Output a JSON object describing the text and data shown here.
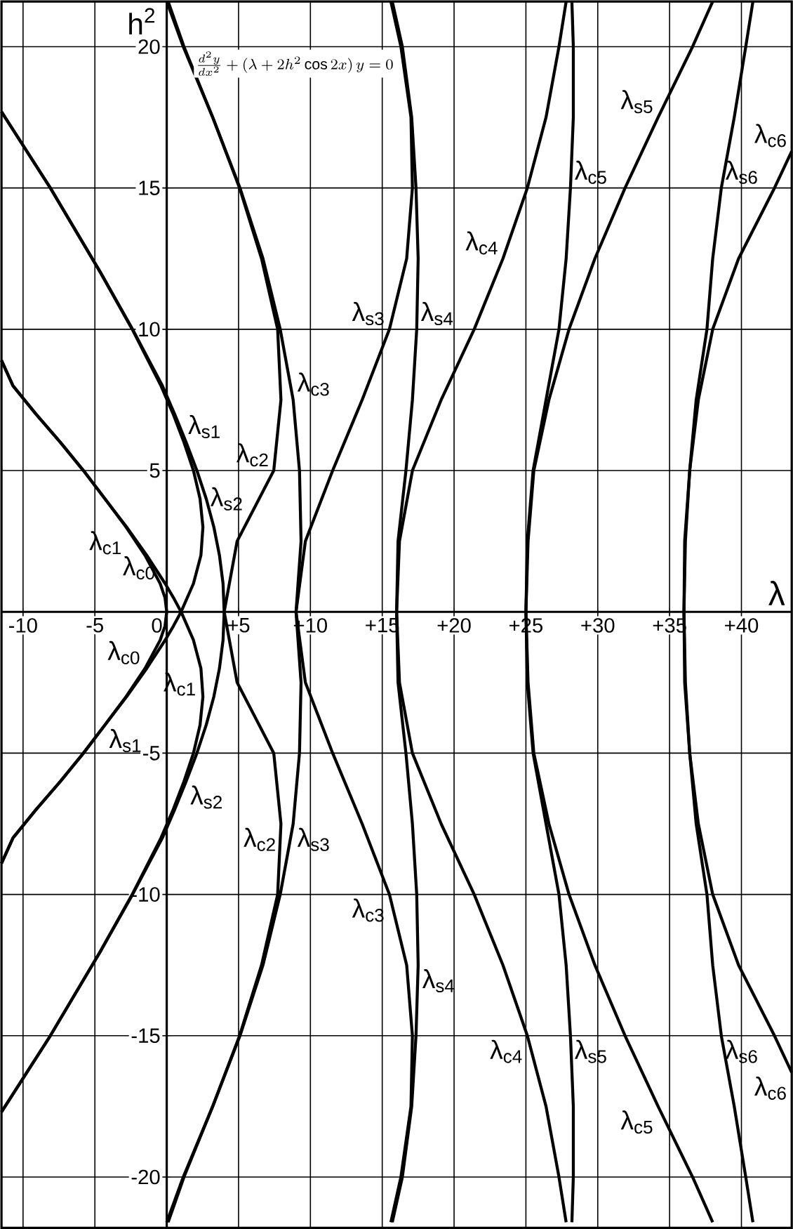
{
  "chart_data": {
    "type": "line",
    "xlabel": "λ",
    "ylabel": "h$^{2}$",
    "annotations": [
      "\\frac{d^{2}y}{dx^{2}}+(\\lambda+2h^{2}\\cos 2x)\\,y=0"
    ],
    "xlim": [
      -11.5,
      43.5
    ],
    "ylim": [
      -21.8,
      21.6
    ],
    "xticks": [
      -10,
      -5,
      0,
      {
        "value": 5,
        "label": "+5"
      },
      {
        "value": 10,
        "label": "+10"
      },
      {
        "value": 15,
        "label": "+15"
      },
      {
        "value": 20,
        "label": "+20"
      },
      {
        "value": 25,
        "label": "+25"
      },
      {
        "value": 30,
        "label": "+30"
      },
      {
        "value": 35,
        "label": "+35"
      },
      {
        "value": 40,
        "label": "+40"
      }
    ],
    "yticks": [
      -20,
      -15,
      -10,
      -5,
      5,
      10,
      15,
      20
    ],
    "grid": true,
    "marker": "none",
    "line_style": "solid",
    "series": [
      {
        "name": "λ$_{c0}$",
        "color": "#000000",
        "x": [
          -11.5,
          -10.7,
          -9.1,
          -7.4,
          -5.8,
          -4.3,
          -2.83,
          -1.51,
          -0.455,
          -0.12,
          0,
          -0.12,
          -0.455,
          -1.51,
          -2.83,
          -4.3,
          -5.8,
          -7.4,
          -9.1,
          -10.7,
          -11.5
        ],
        "values": [
          -8.9,
          -8,
          -7,
          -6,
          -5,
          -4,
          -3,
          -2,
          -1,
          -0.5,
          0,
          0.5,
          1,
          2,
          3,
          4,
          5,
          6,
          7,
          8,
          8.9
        ]
      },
      {
        "name": "λ$_{c1}$",
        "color": "#000000",
        "x": [
          -11.5,
          -8.1,
          -4.6,
          -2.4,
          -0.4,
          0.45,
          1.2,
          1.86,
          2.32,
          2.52,
          2.38,
          1.86,
          1,
          0.47,
          -0.11,
          -1.39,
          -2.79,
          -4.3,
          -5.79,
          -7.4,
          -9.1,
          -10.7,
          -11.5
        ],
        "values": [
          -17.7,
          -15,
          -12,
          -10,
          -8,
          -7,
          -6,
          -5,
          -4,
          -3,
          -2,
          -1,
          0,
          0.5,
          1,
          2,
          3,
          4,
          5,
          6,
          7,
          8,
          8.9
        ]
      },
      {
        "name": "λ$_{s1}$",
        "color": "#000000",
        "x": [
          -11.5,
          -10.7,
          -9.1,
          -7.4,
          -5.79,
          -4.3,
          -2.79,
          -1.39,
          -0.11,
          0.47,
          1,
          1.86,
          2.38,
          2.52,
          2.32,
          1.86,
          1.2,
          0.45,
          -0.4,
          -2.4,
          -4.6,
          -8.1,
          -11.5
        ],
        "values": [
          -8.9,
          -8,
          -7,
          -6,
          -5,
          -4,
          -3,
          -2,
          -1,
          -0.5,
          0,
          1,
          2,
          3,
          4,
          5,
          6,
          7,
          8,
          10,
          12,
          15,
          17.7
        ]
      },
      {
        "name": "λ$_{s2}$",
        "color": "#000000",
        "x": [
          -11.5,
          -8.1,
          -4.6,
          -2.38,
          -0.3,
          0.55,
          1.35,
          2.1,
          2.75,
          3.28,
          3.67,
          3.92,
          4,
          3.92,
          3.67,
          3.28,
          2.75,
          2.1,
          1.35,
          0.55,
          -0.3,
          -2.38,
          -4.6,
          -8.1,
          -11.5
        ],
        "values": [
          -17.7,
          -15,
          -12,
          -10,
          -8,
          -7,
          -6,
          -5,
          -4,
          -3,
          -2,
          -1,
          0,
          1,
          2,
          3,
          4,
          5,
          6,
          7,
          8,
          10,
          12,
          15,
          17.7
        ]
      },
      {
        "name": "λ$_{c2}$",
        "color": "#000000",
        "x": [
          0,
          1.15,
          3.2,
          5.07,
          6.6,
          7.72,
          7.95,
          7.45,
          4.9,
          4,
          4.9,
          7.45,
          7.95,
          7.72,
          6.6,
          5.07,
          3.2,
          1.15,
          0
        ],
        "values": [
          -21.6,
          -20,
          -17.5,
          -15,
          -12.5,
          -10,
          -7.5,
          -5,
          -2.5,
          0,
          2.5,
          5,
          7.5,
          10,
          12.5,
          15,
          17.5,
          20,
          21.6
        ]
      },
      {
        "name": "λ$_{s3}$",
        "color": "#000000",
        "x": [
          0.1,
          1.2,
          3.2,
          5.1,
          6.7,
          7.9,
          8.8,
          9.24,
          9.35,
          9,
          9.65,
          11.55,
          13.6,
          15.5,
          16.7,
          17.1,
          17.0,
          16.3,
          15.6
        ],
        "values": [
          -21.6,
          -20,
          -17.5,
          -15,
          -12.5,
          -10,
          -7.5,
          -5,
          -2.5,
          0,
          2.5,
          5,
          7.5,
          10,
          12.5,
          15,
          17.5,
          20,
          21.6
        ]
      },
      {
        "name": "λ$_{c3}$",
        "color": "#000000",
        "x": [
          15.6,
          16.3,
          17.0,
          17.1,
          16.7,
          15.5,
          13.6,
          11.55,
          9.65,
          9,
          9.35,
          9.24,
          8.8,
          7.9,
          6.7,
          5.1,
          3.2,
          1.2,
          0.1
        ],
        "values": [
          -21.6,
          -20,
          -17.5,
          -15,
          -12.5,
          -10,
          -7.5,
          -5,
          -2.5,
          0,
          2.5,
          5,
          7.5,
          10,
          12.5,
          15,
          17.5,
          20,
          21.6
        ]
      },
      {
        "name": "λ$_{s4}$",
        "color": "#000000",
        "x": [
          15.7,
          16.4,
          17.05,
          17.35,
          17.5,
          17.4,
          17.1,
          16.65,
          16.1,
          16,
          16.1,
          16.65,
          17.1,
          17.4,
          17.5,
          17.35,
          17.05,
          16.4,
          15.7
        ],
        "values": [
          -21.6,
          -20,
          -17.5,
          -15,
          -12.5,
          -10,
          -7.5,
          -5,
          -2.5,
          0,
          2.5,
          5,
          7.5,
          10,
          12.5,
          15,
          17.5,
          20,
          21.6
        ]
      },
      {
        "name": "λ$_{c4}$",
        "color": "#000000",
        "x": [
          27.8,
          27.3,
          26.4,
          25.1,
          23.4,
          21.4,
          19.1,
          17.1,
          16.2,
          16,
          16.2,
          17.1,
          19.1,
          21.4,
          23.4,
          25.1,
          26.4,
          27.3,
          27.8
        ],
        "values": [
          -21.6,
          -20,
          -17.5,
          -15,
          -12.5,
          -10,
          -7.5,
          -5,
          -2.5,
          0,
          2.5,
          5,
          7.5,
          10,
          12.5,
          15,
          17.5,
          20,
          21.6
        ]
      },
      {
        "name": "λ$_{s5}$",
        "color": "#000000",
        "x": [
          28.2,
          28.3,
          28.3,
          28.1,
          27.8,
          27.3,
          26.4,
          25.5,
          25.1,
          25,
          25.15,
          25.55,
          26.6,
          28.0,
          29.8,
          31.9,
          34.2,
          36.6,
          38.0
        ],
        "values": [
          -21.6,
          -20,
          -17.5,
          -15,
          -12.5,
          -10,
          -7.5,
          -5,
          -2.5,
          0,
          2.5,
          5,
          7.5,
          10,
          12.5,
          15,
          17.5,
          20,
          21.6
        ]
      },
      {
        "name": "λ$_{c5}$",
        "color": "#000000",
        "x": [
          38.0,
          36.6,
          34.2,
          31.9,
          29.8,
          28.0,
          26.6,
          25.55,
          25.15,
          25,
          25.1,
          25.5,
          26.4,
          27.3,
          27.8,
          28.1,
          28.3,
          28.3,
          28.2
        ],
        "values": [
          -21.6,
          -20,
          -17.5,
          -15,
          -12.5,
          -10,
          -7.5,
          -5,
          -2.5,
          0,
          2.5,
          5,
          7.5,
          10,
          12.5,
          15,
          17.5,
          20,
          21.6
        ]
      },
      {
        "name": "λ$_{s6}$",
        "color": "#000000",
        "x": [
          40.8,
          40.3,
          39.5,
          38.6,
          38.0,
          37.6,
          36.85,
          36.4,
          36.1,
          36,
          36.1,
          36.4,
          36.85,
          37.6,
          38.0,
          38.6,
          39.5,
          40.3,
          40.8
        ],
        "values": [
          -21.6,
          -20,
          -17.5,
          -15,
          -12.5,
          -10,
          -7.5,
          -5,
          -2.5,
          0,
          2.5,
          5,
          7.5,
          10,
          12.5,
          15,
          17.5,
          20,
          21.6
        ]
      },
      {
        "name": "λ$_{c6}$",
        "color": "#000000",
        "x": [
          43.5,
          42.3,
          39.8,
          38.0,
          37.0,
          36.4,
          36.05,
          36,
          36.05,
          36.4,
          37.0,
          38.0,
          39.8,
          42.3,
          43.5
        ],
        "values": [
          -16.3,
          -15,
          -12.5,
          -10,
          -7.5,
          -5,
          -2.5,
          0,
          2.5,
          5,
          7.5,
          10,
          12.5,
          15,
          16.3
        ]
      }
    ]
  }
}
